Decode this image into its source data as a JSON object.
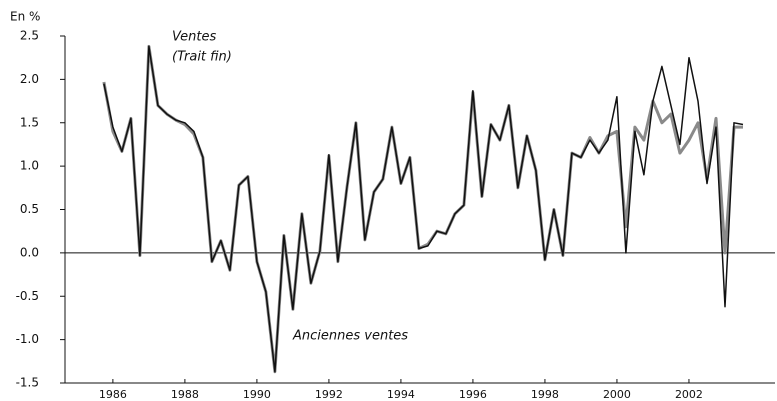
{
  "chart_data": {
    "type": "line",
    "unit_label": "En %",
    "x": [
      1985.75,
      1986,
      1986.25,
      1986.5,
      1986.75,
      1987,
      1987.25,
      1987.5,
      1987.75,
      1988,
      1988.25,
      1988.5,
      1988.75,
      1989,
      1989.25,
      1989.5,
      1989.75,
      1990,
      1990.25,
      1990.5,
      1990.75,
      1991,
      1991.25,
      1991.5,
      1991.75,
      1992,
      1992.25,
      1992.5,
      1992.75,
      1993,
      1993.25,
      1993.5,
      1993.75,
      1994,
      1994.25,
      1994.5,
      1994.75,
      1995,
      1995.25,
      1995.5,
      1995.75,
      1996,
      1996.25,
      1996.5,
      1996.75,
      1997,
      1997.25,
      1997.5,
      1997.75,
      1998,
      1998.25,
      1998.5,
      1998.75,
      1999,
      1999.25,
      1999.5,
      1999.75,
      2000,
      2000.25,
      2000.5,
      2000.75,
      2001,
      2001.25,
      2001.5,
      2001.75,
      2002,
      2002.25,
      2002.5,
      2002.75,
      2003,
      2003.25,
      2003.5
    ],
    "series": [
      {
        "name": "Ventes",
        "color": "#111111",
        "values": [
          1.95,
          1.45,
          1.17,
          1.55,
          -0.03,
          2.38,
          1.7,
          1.6,
          1.53,
          1.5,
          1.4,
          1.1,
          -0.1,
          0.14,
          -0.2,
          0.78,
          0.88,
          -0.1,
          -0.45,
          -1.37,
          0.2,
          -0.65,
          0.45,
          -0.35,
          0.02,
          1.13,
          -0.1,
          0.75,
          1.5,
          0.15,
          0.7,
          0.85,
          1.45,
          0.8,
          1.1,
          0.05,
          0.08,
          0.25,
          0.22,
          0.45,
          0.55,
          1.87,
          0.65,
          1.48,
          1.3,
          1.7,
          0.75,
          1.35,
          0.95,
          -0.08,
          0.5,
          -0.03,
          1.15,
          1.1,
          1.3,
          1.15,
          1.3,
          1.8,
          0.0,
          1.4,
          0.9,
          1.75,
          2.15,
          1.7,
          1.25,
          2.25,
          1.75,
          0.8,
          1.45,
          -0.62,
          1.5,
          1.48
        ]
      },
      {
        "name": "Anciennes ventes",
        "color": "#8a8a8a",
        "values": [
          1.97,
          1.4,
          1.17,
          1.55,
          -0.03,
          2.38,
          1.7,
          1.6,
          1.53,
          1.48,
          1.37,
          1.1,
          -0.1,
          0.14,
          -0.2,
          0.78,
          0.88,
          -0.1,
          -0.45,
          -1.37,
          0.2,
          -0.65,
          0.45,
          -0.35,
          0.02,
          1.12,
          -0.1,
          0.75,
          1.5,
          0.15,
          0.7,
          0.85,
          1.45,
          0.8,
          1.1,
          0.05,
          0.1,
          0.25,
          0.22,
          0.45,
          0.55,
          1.85,
          0.65,
          1.48,
          1.3,
          1.7,
          0.75,
          1.35,
          0.95,
          -0.08,
          0.5,
          -0.03,
          1.15,
          1.1,
          1.33,
          1.15,
          1.35,
          1.4,
          0.3,
          1.45,
          1.3,
          1.75,
          1.5,
          1.6,
          1.15,
          1.3,
          1.5,
          0.85,
          1.55,
          0.0,
          1.45,
          1.45
        ]
      }
    ],
    "annotations": [
      "(Trait fin)"
    ],
    "xlim": [
      1984.67,
      2004.39
    ],
    "xticks": [
      1986,
      1988,
      1990,
      1992,
      1994,
      1996,
      1998,
      2000,
      2002
    ],
    "ylim": [
      -1.5,
      2.5
    ],
    "yticks": [
      2.5,
      {
        "value": 2,
        "label": "2.0"
      },
      1.5,
      {
        "value": 1,
        "label": "1.0"
      },
      0.5,
      {
        "value": 0,
        "label": "0.0"
      },
      -0.5,
      {
        "value": -1,
        "label": "-1.0"
      },
      -1.5
    ],
    "zero_line": true
  }
}
